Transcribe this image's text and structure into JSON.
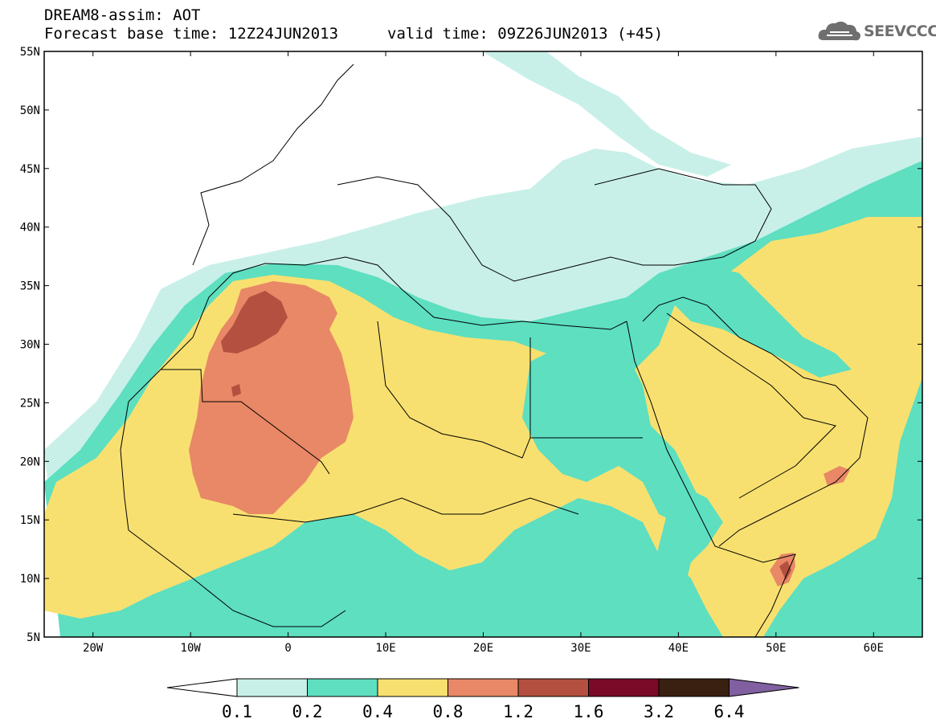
{
  "header": {
    "title": "DREAM8-assim: AOT",
    "base_time": "Forecast base time: 12Z24JUN2013",
    "valid_time": "valid time: 09Z26JUN2013 (+45)",
    "logo_text": "SEEVCCC"
  },
  "map": {
    "lon_range": [
      -25,
      65
    ],
    "lat_range": [
      5,
      55
    ],
    "lat_labels": [
      "55N",
      "50N",
      "45N",
      "40N",
      "35N",
      "30N",
      "25N",
      "20N",
      "15N",
      "10N",
      "5N"
    ],
    "lon_labels": [
      "20W",
      "10W",
      "0",
      "10E",
      "20E",
      "30E",
      "40E",
      "50E",
      "60E"
    ],
    "field": "Aerosol optical thickness (AOT)"
  },
  "legend": {
    "levels": [
      "0.1",
      "0.2",
      "0.4",
      "0.8",
      "1.2",
      "1.6",
      "3.2",
      "6.4"
    ],
    "colors": [
      "#ffffff",
      "#c8f0e8",
      "#5ddfc0",
      "#f8e070",
      "#e88866",
      "#b35040",
      "#7a0a28",
      "#3a2010",
      "#8060a0"
    ]
  }
}
